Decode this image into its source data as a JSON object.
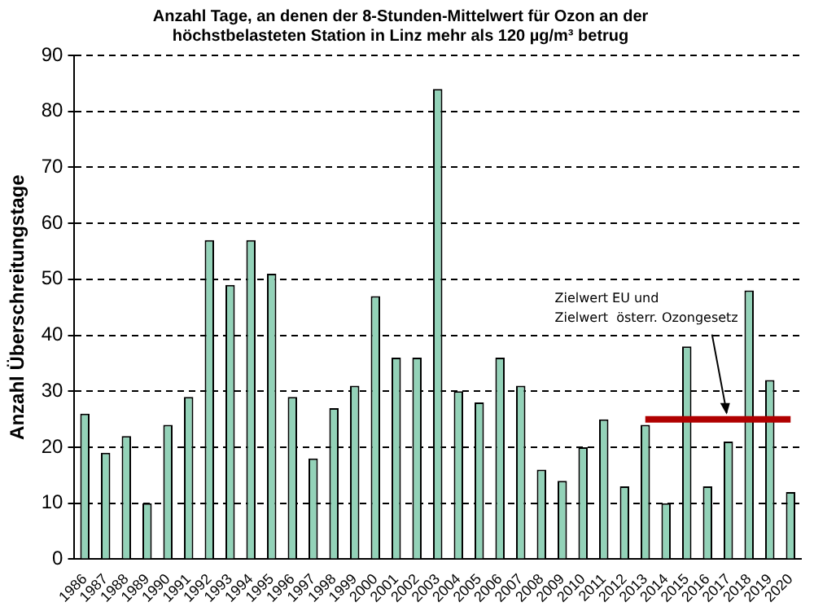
{
  "chart_data": {
    "type": "bar",
    "title": [
      "Anzahl Tage, an denen der 8-Stunden-Mittelwert für Ozon an der",
      "höchstbelasteten Station in Linz mehr als 120 µg/m³ betrug"
    ],
    "ylabel": "Anzahl Überschreitungstage",
    "categories": [
      "1986",
      "1987",
      "1988",
      "1989",
      "1990",
      "1991",
      "1992",
      "1993",
      "1994",
      "1995",
      "1996",
      "1997",
      "1998",
      "1999",
      "2000",
      "2001",
      "2002",
      "2003",
      "2004",
      "2005",
      "2006",
      "2007",
      "2008",
      "2009",
      "2010",
      "2011",
      "2012",
      "2013",
      "2014",
      "2015",
      "2016",
      "2017",
      "2018",
      "2019",
      "2020"
    ],
    "series": [
      {
        "color": "#93d2b8",
        "values": [
          26,
          19,
          22,
          10,
          24,
          29,
          57,
          49,
          57,
          51,
          29,
          18,
          27,
          31,
          47,
          36,
          36,
          84,
          30,
          28,
          36,
          31,
          16,
          14,
          20,
          25,
          13,
          24,
          10,
          38,
          13,
          21,
          48,
          32,
          12
        ]
      },
      {
        "type": "line",
        "color": "#b00000",
        "values": [
          null,
          null,
          null,
          null,
          null,
          null,
          null,
          null,
          null,
          null,
          null,
          null,
          null,
          null,
          null,
          null,
          null,
          null,
          null,
          null,
          null,
          null,
          null,
          null,
          null,
          null,
          null,
          25,
          25,
          25,
          25,
          25,
          25,
          25,
          25
        ]
      }
    ],
    "ylim": [
      0,
      90
    ],
    "yticks": [
      0,
      10,
      20,
      30,
      40,
      50,
      60,
      70,
      80,
      90
    ],
    "grid": "y",
    "legend": false,
    "marker": "none",
    "line_style": "solid",
    "annotations": [
      {
        "text": "Zielwert EU und\nZielwert  österr. Ozongesetz",
        "x": "2017",
        "y": 25
      }
    ]
  }
}
